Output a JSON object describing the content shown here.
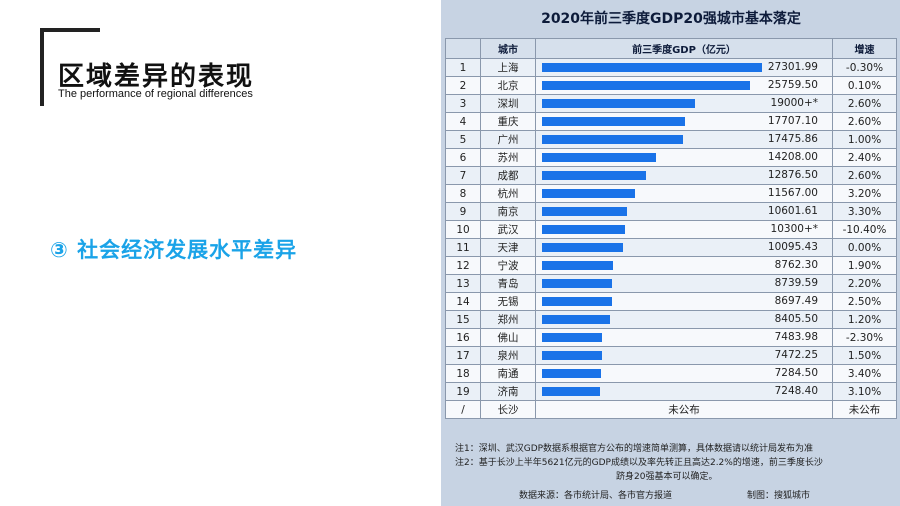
{
  "header": {
    "title_cn": "区域差异的表现",
    "title_en": "The performance of regional differences"
  },
  "point": {
    "text": "③ 社会经济发展水平差异"
  },
  "colors": {
    "accent": "#1aa3e8",
    "bar": "#1a73e8"
  },
  "table": {
    "title": "2020年前三季度GDP20强城市基本落定",
    "headers": {
      "rank": "",
      "city": "城市",
      "gdp": "前三季度GDP（亿元）",
      "growth": "增速"
    },
    "max_gdp": 27301.99,
    "rows": [
      {
        "rank": "1",
        "city": "上海",
        "gdp_text": "27301.99",
        "gdp": 27301.99,
        "growth": "-0.30%"
      },
      {
        "rank": "2",
        "city": "北京",
        "gdp_text": "25759.50",
        "gdp": 25759.5,
        "growth": "0.10%"
      },
      {
        "rank": "3",
        "city": "深圳",
        "gdp_text": "19000+*",
        "gdp": 19000,
        "growth": "2.60%"
      },
      {
        "rank": "4",
        "city": "重庆",
        "gdp_text": "17707.10",
        "gdp": 17707.1,
        "growth": "2.60%"
      },
      {
        "rank": "5",
        "city": "广州",
        "gdp_text": "17475.86",
        "gdp": 17475.86,
        "growth": "1.00%"
      },
      {
        "rank": "6",
        "city": "苏州",
        "gdp_text": "14208.00",
        "gdp": 14208.0,
        "growth": "2.40%"
      },
      {
        "rank": "7",
        "city": "成都",
        "gdp_text": "12876.50",
        "gdp": 12876.5,
        "growth": "2.60%"
      },
      {
        "rank": "8",
        "city": "杭州",
        "gdp_text": "11567.00",
        "gdp": 11567.0,
        "growth": "3.20%"
      },
      {
        "rank": "9",
        "city": "南京",
        "gdp_text": "10601.61",
        "gdp": 10601.61,
        "growth": "3.30%"
      },
      {
        "rank": "10",
        "city": "武汉",
        "gdp_text": "10300+*",
        "gdp": 10300,
        "growth": "-10.40%"
      },
      {
        "rank": "11",
        "city": "天津",
        "gdp_text": "10095.43",
        "gdp": 10095.43,
        "growth": "0.00%"
      },
      {
        "rank": "12",
        "city": "宁波",
        "gdp_text": "8762.30",
        "gdp": 8762.3,
        "growth": "1.90%"
      },
      {
        "rank": "13",
        "city": "青岛",
        "gdp_text": "8739.59",
        "gdp": 8739.59,
        "growth": "2.20%"
      },
      {
        "rank": "14",
        "city": "无锡",
        "gdp_text": "8697.49",
        "gdp": 8697.49,
        "growth": "2.50%"
      },
      {
        "rank": "15",
        "city": "郑州",
        "gdp_text": "8405.50",
        "gdp": 8405.5,
        "growth": "1.20%"
      },
      {
        "rank": "16",
        "city": "佛山",
        "gdp_text": "7483.98",
        "gdp": 7483.98,
        "growth": "-2.30%"
      },
      {
        "rank": "17",
        "city": "泉州",
        "gdp_text": "7472.25",
        "gdp": 7472.25,
        "growth": "1.50%"
      },
      {
        "rank": "18",
        "city": "南通",
        "gdp_text": "7284.50",
        "gdp": 7284.5,
        "growth": "3.40%"
      },
      {
        "rank": "19",
        "city": "济南",
        "gdp_text": "7248.40",
        "gdp": 7248.4,
        "growth": "3.10%"
      }
    ],
    "last_row": {
      "rank": "/",
      "city": "长沙",
      "gdp": "未公布",
      "growth": "未公布"
    },
    "notes": [
      "注1：深圳、武汉GDP数据系根据官方公布的增速简单测算，具体数据请以统计局发布为准",
      "注2：基于长沙上半年5621亿元的GDP成绩以及率先转正且高达2.2%的增速，前三季度长沙",
      "跻身20强基本可以确定。"
    ],
    "source": "数据来源：各市统计局、各市官方报道",
    "made_by": "制图：搜狐城市"
  }
}
